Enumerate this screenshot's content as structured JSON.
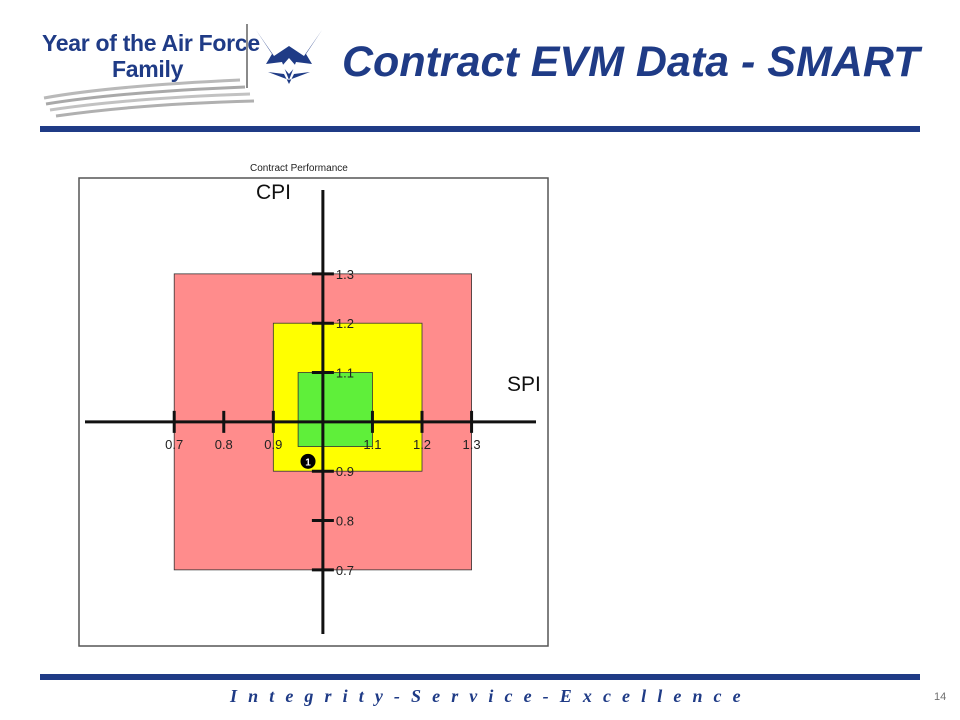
{
  "header": {
    "logo_line1": "Year of the Air Force",
    "logo_line2": "Family",
    "title": "Contract EVM Data - SMART"
  },
  "footer": {
    "motto": "I n t e g r i t y  -  S e r v i c e  -  E x c e l l e n c e",
    "page_number": "14"
  },
  "colors": {
    "brand_blue": "#1f3b86",
    "red_zone": "#ff8c8c",
    "yellow_zone": "#ffff00",
    "green_zone": "#5fef3a"
  },
  "icons": [
    "air-force-symbol-icon",
    "logo-swoosh-icon"
  ],
  "chart_data": {
    "type": "scatter",
    "title": "Contract Performance",
    "xlabel": "SPI",
    "ylabel": "CPI",
    "xlim": [
      0.52,
      1.43
    ],
    "ylim": [
      0.57,
      1.47
    ],
    "x_ticks": [
      0.7,
      0.8,
      0.9,
      1.1,
      1.2,
      1.3
    ],
    "x_tick_labels": [
      "0.7",
      "0.8",
      "0.9",
      "1.1",
      "1.2",
      "1.3"
    ],
    "y_ticks": [
      1.3,
      1.2,
      1.1,
      0.9,
      0.8,
      0.7
    ],
    "y_tick_labels": [
      "1.3",
      "1.2",
      "1.1",
      "0.9",
      "0.8",
      "0.7"
    ],
    "zones": [
      {
        "name": "red",
        "color": "#ff8c8c",
        "x": [
          0.7,
          1.3
        ],
        "y": [
          0.7,
          1.3
        ]
      },
      {
        "name": "yellow",
        "color": "#ffff00",
        "x": [
          0.9,
          1.2
        ],
        "y": [
          0.9,
          1.2
        ]
      },
      {
        "name": "green",
        "color": "#5fef3a",
        "x": [
          0.95,
          1.1
        ],
        "y": [
          0.95,
          1.1
        ]
      }
    ],
    "points": [
      {
        "label": "1",
        "x": 0.97,
        "y": 0.92
      }
    ],
    "grid": false
  }
}
